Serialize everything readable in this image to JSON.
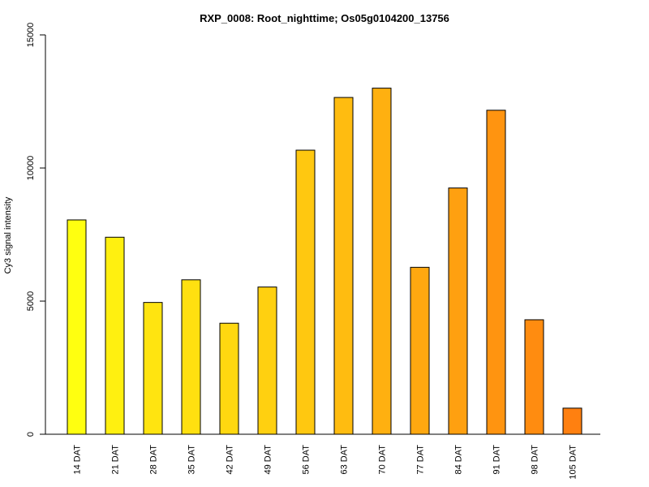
{
  "chart_data": {
    "type": "bar",
    "title": "RXP_0008: Root_nighttime; Os05g0104200_13756",
    "xlabel": "",
    "ylabel": "Cy3 signal intensity",
    "ylim": [
      0,
      15000
    ],
    "yticks": [
      "0",
      "5000",
      "10000",
      "15000"
    ],
    "categories": [
      "14 DAT",
      "21 DAT",
      "28 DAT",
      "35 DAT",
      "42 DAT",
      "49 DAT",
      "56 DAT",
      "63 DAT",
      "70 DAT",
      "77 DAT",
      "84 DAT",
      "91 DAT",
      "98 DAT",
      "105 DAT"
    ],
    "values": [
      8050,
      7400,
      4950,
      5800,
      4170,
      5530,
      10670,
      12650,
      13000,
      6270,
      9250,
      12170,
      4300,
      980
    ],
    "colors": [
      "#ffff10",
      "#fff010",
      "#ffe410",
      "#ffe010",
      "#ffd810",
      "#ffd010",
      "#ffc810",
      "#ffbc10",
      "#ffb010",
      "#ffa810",
      "#ffa010",
      "#ff9410",
      "#ff8c10",
      "#ff8010"
    ],
    "grid": false,
    "legend": "none"
  }
}
